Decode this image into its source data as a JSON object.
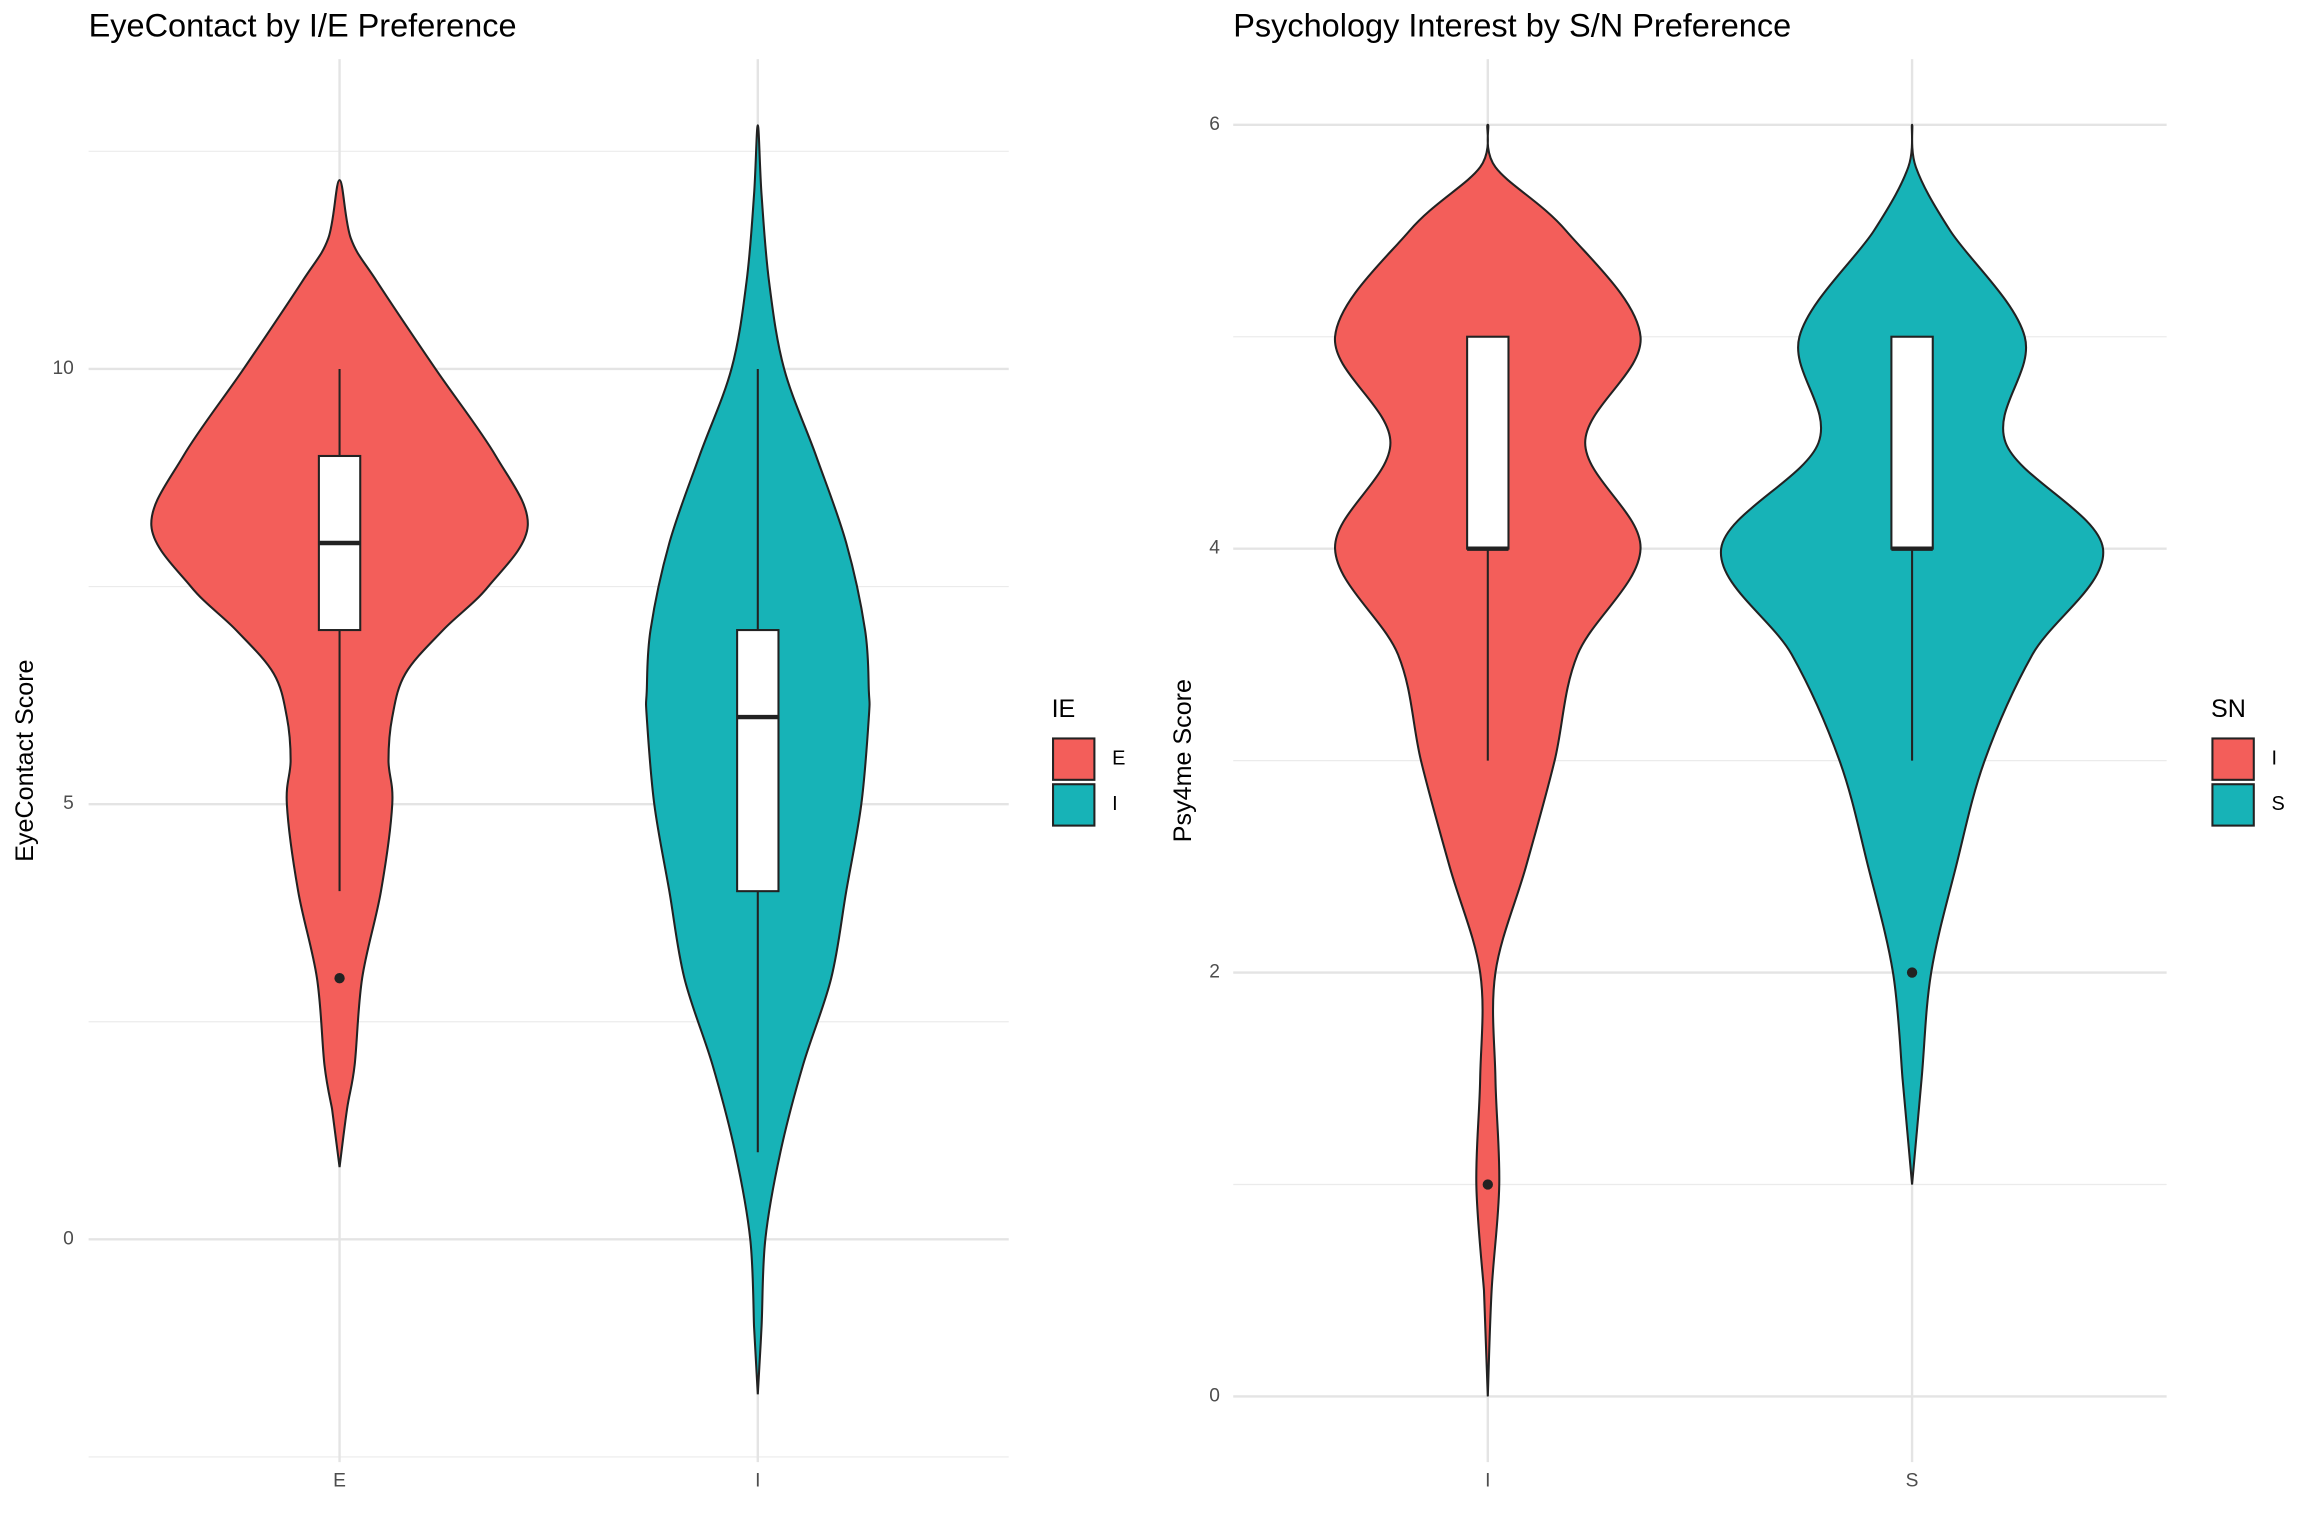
{
  "chart_data": [
    {
      "type": "violin",
      "title": "EyeContact by I/E Preference",
      "y_label": "EyeContact Score",
      "categories": [
        "E",
        "I"
      ],
      "legend_title": "IE",
      "colors": [
        "#F35E5A",
        "#17B3B7"
      ],
      "ylim": [
        -2.56,
        13.56
      ],
      "yticks": [
        0,
        5,
        10
      ],
      "minor_yticks": [
        -2.5,
        2.5,
        7.5,
        12.5
      ],
      "grid": true,
      "violins": [
        {
          "y": [
            0.83,
            1.5,
            2,
            3,
            4,
            5,
            5.5,
            6,
            6.5,
            7,
            7.5,
            8.2,
            9,
            10,
            11,
            11.5,
            12.17
          ],
          "density": [
            0,
            0.04,
            0.08,
            0.12,
            0.22,
            0.28,
            0.26,
            0.28,
            0.35,
            0.55,
            0.79,
            1,
            0.83,
            0.51,
            0.2,
            0.06,
            0
          ]
        },
        {
          "y": [
            -1.78,
            -1,
            0,
            1,
            2,
            3,
            4,
            5,
            6,
            6.3,
            7,
            8,
            9,
            10,
            11,
            12,
            12.8
          ],
          "density": [
            0,
            0.02,
            0.04,
            0.12,
            0.24,
            0.39,
            0.47,
            0.55,
            0.59,
            0.59,
            0.57,
            0.47,
            0.31,
            0.14,
            0.06,
            0.02,
            0
          ]
        }
      ],
      "boxes": [
        {
          "whisker_low": 4,
          "q1": 7,
          "median": 8,
          "q3": 9,
          "whisker_high": 10,
          "outliers": [
            3
          ]
        },
        {
          "whisker_low": 1,
          "q1": 4,
          "median": 6,
          "q3": 7,
          "whisker_high": 10,
          "outliers": []
        }
      ]
    },
    {
      "type": "violin",
      "title": "Psychology Interest by S/N Preference",
      "y_label": "Psy4me Score",
      "categories": [
        "I",
        "S"
      ],
      "legend_title": "SN",
      "colors": [
        "#F35E5A",
        "#17B3B7"
      ],
      "ylim": [
        -0.31,
        6.31
      ],
      "yticks": [
        0,
        2,
        4,
        6
      ],
      "minor_yticks": [
        1,
        3,
        5
      ],
      "grid": true,
      "violins": [
        {
          "y": [
            0,
            0.5,
            1,
            1.5,
            2,
            2.5,
            3,
            3.5,
            4,
            4.5,
            5,
            5.5,
            5.8,
            6
          ],
          "density": [
            0,
            0.02,
            0.06,
            0.04,
            0.04,
            0.2,
            0.35,
            0.47,
            0.8,
            0.51,
            0.8,
            0.41,
            0.04,
            0
          ]
        },
        {
          "y": [
            1,
            1.5,
            2,
            2.5,
            3,
            3.5,
            4,
            4.5,
            5,
            5.5,
            5.8,
            6
          ],
          "density": [
            0,
            0.05,
            0.1,
            0.23,
            0.38,
            0.63,
            1,
            0.49,
            0.59,
            0.2,
            0.02,
            0
          ]
        }
      ],
      "boxes": [
        {
          "whisker_low": 3,
          "q1": 4,
          "median": 4,
          "q3": 5,
          "whisker_high": 5,
          "outliers": [
            1
          ]
        },
        {
          "whisker_low": 3,
          "q1": 4,
          "median": 4,
          "q3": 5,
          "whisker_high": 5,
          "outliers": [
            2
          ]
        }
      ]
    }
  ]
}
